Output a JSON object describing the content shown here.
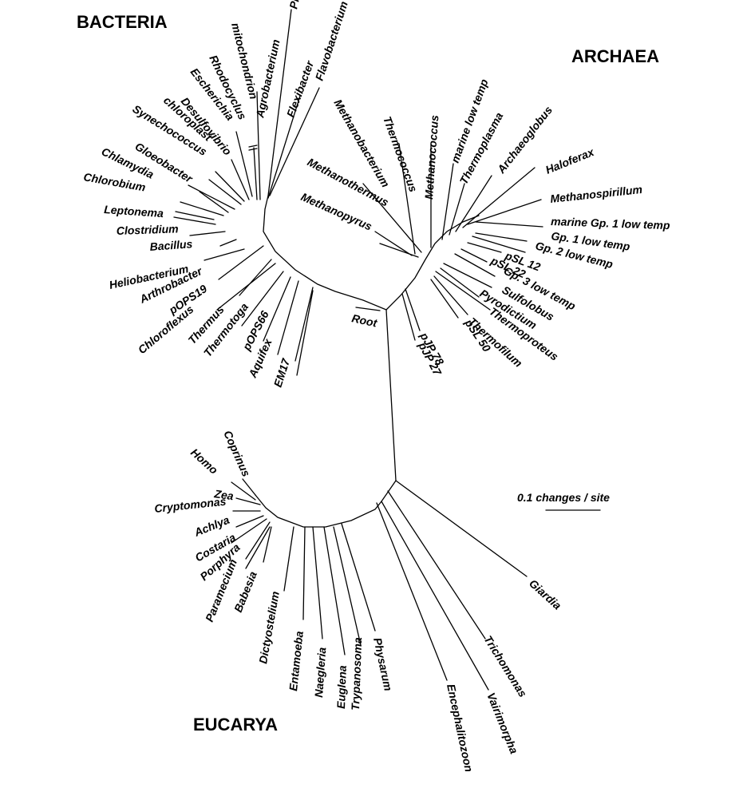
{
  "domains": {
    "bacteria": "BACTERIA",
    "archaea": "ARCHAEA",
    "eucarya": "EUCARYA"
  },
  "root_label": "Root",
  "scale_bar": {
    "label": "0.1 changes / site",
    "length": 0.1
  },
  "taxa": {
    "bacteria": [
      "Planctomyces",
      "mitochondrion",
      "Agrobacterium",
      "Flavobacterium",
      "Flexibacter",
      "Rhodocyclus",
      "Escherichia",
      "Desulfovibrio",
      "chloroplast",
      "Synechococcus",
      "Gloeobacter",
      "Chlamydia",
      "Chlorobium",
      "Leptonema",
      "Clostridium",
      "Bacillus",
      "Heliobacterium",
      "Arthrobacter",
      "pOPS19",
      "Chloroflexus",
      "Thermus",
      "Thermotoga",
      "pOPS66",
      "Aquifex",
      "EM17"
    ],
    "archaea": [
      "Methanobacterium",
      "Thermococcus",
      "Methanococcus",
      "marine low temp",
      "Thermoplasma",
      "Archaeoglobus",
      "Haloferax",
      "Methanospirillum",
      "Methanothermus",
      "Methanopyrus",
      "marine Gp. 1 low temp",
      "Gp. 1 low temp",
      "Gp. 2 low temp",
      "pSL 12",
      "pSL 22",
      "Gp. 3 low temp",
      "Sulfolobus",
      "Pyrodictium",
      "Thermoproteus",
      "Thermofilum",
      "pSL 50",
      "pJP 78",
      "pJP 27"
    ],
    "eucarya": [
      "Coprinus",
      "Homo",
      "Zea",
      "Cryptomonas",
      "Achlya",
      "Costaria",
      "Porphyra",
      "Babesia",
      "Paramecium",
      "Dictyostelium",
      "Entamoeba",
      "Naegleria",
      "Euglena",
      "Trypanosoma",
      "Physarum",
      "Encephalitozoon",
      "Vairimorpha",
      "Trichomonas",
      "Giardia"
    ]
  }
}
